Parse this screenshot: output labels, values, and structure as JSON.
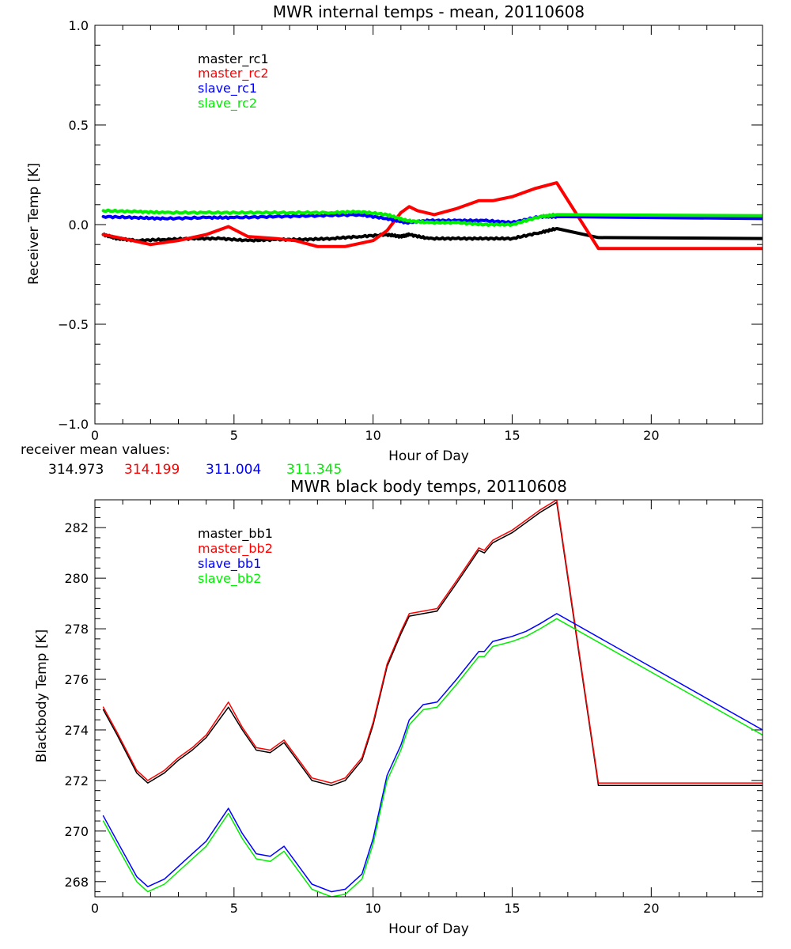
{
  "chart_data": [
    {
      "type": "line",
      "title": "MWR internal temps - mean, 20110608",
      "xlabel": "Hour of Day",
      "ylabel": "Receiver Temp [K]",
      "xlim": [
        0,
        24
      ],
      "ylim": [
        -1.0,
        1.0
      ],
      "xticks": [
        0,
        5,
        10,
        15,
        20
      ],
      "xtick_labels": [
        "0",
        "5",
        "10",
        "15",
        "20"
      ],
      "yticks": [
        -1.0,
        -0.5,
        0.0,
        0.5,
        1.0
      ],
      "ytick_labels": [
        "−1.0",
        "−0.5",
        "0.0",
        "0.5",
        "1.0"
      ],
      "grid": false,
      "legend_position": "top-left",
      "series": [
        {
          "name": "master_rc1",
          "color": "#000000",
          "line_width": 4,
          "noisy": true,
          "x": [
            0.3,
            0.8,
            1.5,
            2.5,
            3.5,
            4.5,
            5.5,
            6.5,
            7.5,
            8.5,
            9.5,
            10.5,
            11.0,
            11.3,
            12.0,
            13.0,
            14.0,
            15.0,
            16.0,
            16.6,
            18.1,
            24.0
          ],
          "y": [
            -0.05,
            -0.07,
            -0.08,
            -0.075,
            -0.07,
            -0.07,
            -0.08,
            -0.075,
            -0.075,
            -0.07,
            -0.06,
            -0.05,
            -0.06,
            -0.05,
            -0.07,
            -0.07,
            -0.07,
            -0.07,
            -0.04,
            -0.02,
            -0.065,
            -0.07
          ]
        },
        {
          "name": "master_rc2",
          "color": "#ff0000",
          "line_width": 4,
          "noisy": false,
          "x": [
            0.3,
            1.0,
            2.0,
            3.0,
            4.0,
            4.8,
            5.5,
            6.5,
            7.2,
            8.0,
            9.0,
            10.0,
            10.5,
            11.0,
            11.3,
            11.6,
            12.2,
            13.0,
            13.8,
            14.3,
            15.0,
            15.8,
            16.6,
            18.1,
            24.0
          ],
          "y": [
            -0.05,
            -0.07,
            -0.1,
            -0.08,
            -0.05,
            -0.01,
            -0.06,
            -0.07,
            -0.08,
            -0.11,
            -0.11,
            -0.08,
            -0.03,
            0.06,
            0.09,
            0.07,
            0.05,
            0.08,
            0.12,
            0.12,
            0.14,
            0.18,
            0.21,
            -0.12,
            -0.12
          ]
        },
        {
          "name": "slave_rc1",
          "color": "#0000ff",
          "line_width": 4,
          "noisy": true,
          "x": [
            0.3,
            1.5,
            2.5,
            4.0,
            5.0,
            6.5,
            8.0,
            9.5,
            10.5,
            11.2,
            12.0,
            13.0,
            14.0,
            15.0,
            16.0,
            16.6,
            24.0
          ],
          "y": [
            0.04,
            0.035,
            0.03,
            0.035,
            0.035,
            0.04,
            0.045,
            0.05,
            0.03,
            0.01,
            0.02,
            0.02,
            0.02,
            0.01,
            0.04,
            0.04,
            0.03
          ]
        },
        {
          "name": "slave_rc2",
          "color": "#00ee00",
          "line_width": 4,
          "noisy": true,
          "x": [
            0.3,
            1.5,
            2.5,
            4.0,
            5.5,
            7.0,
            8.5,
            9.5,
            10.5,
            11.2,
            12.0,
            13.0,
            14.0,
            15.0,
            16.0,
            16.6,
            24.0
          ],
          "y": [
            0.07,
            0.065,
            0.06,
            0.06,
            0.06,
            0.06,
            0.06,
            0.065,
            0.05,
            0.02,
            0.01,
            0.01,
            0.0,
            0.0,
            0.04,
            0.05,
            0.045
          ]
        }
      ],
      "annotation": {
        "label": "receiver mean values:",
        "values": [
          "314.973",
          "314.199",
          "311.004",
          "311.345"
        ],
        "colors": [
          "#000000",
          "#ff0000",
          "#0000ff",
          "#00ee00"
        ]
      }
    },
    {
      "type": "line",
      "title": "MWR black body temps, 20110608",
      "xlabel": "Hour of Day",
      "ylabel": "Blackbody Temp [K]",
      "xlim": [
        0,
        24
      ],
      "ylim": [
        267.4,
        283.1
      ],
      "xticks": [
        0,
        5,
        10,
        15,
        20
      ],
      "xtick_labels": [
        "0",
        "5",
        "10",
        "15",
        "20"
      ],
      "yticks": [
        268,
        270,
        272,
        274,
        276,
        278,
        280,
        282
      ],
      "ytick_labels": [
        "268",
        "270",
        "272",
        "274",
        "276",
        "278",
        "280",
        "282"
      ],
      "grid": false,
      "legend_position": "top-left",
      "series": [
        {
          "name": "master_bb1",
          "color": "#000000",
          "line_width": 1.5,
          "noisy": false,
          "x": [
            0.3,
            0.8,
            1.5,
            1.9,
            2.5,
            3.0,
            3.5,
            4.0,
            4.8,
            5.3,
            5.8,
            6.3,
            6.8,
            7.2,
            7.8,
            8.5,
            9.0,
            9.6,
            10.0,
            10.5,
            11.0,
            11.3,
            11.8,
            12.3,
            13.0,
            13.8,
            14.0,
            14.3,
            15.0,
            15.5,
            16.0,
            16.6,
            18.1,
            24.0
          ],
          "y": [
            274.8,
            273.8,
            272.3,
            271.9,
            272.3,
            272.8,
            273.2,
            273.7,
            274.9,
            274.0,
            273.2,
            273.1,
            273.5,
            272.9,
            272.0,
            271.8,
            272.0,
            272.8,
            274.2,
            276.5,
            277.8,
            278.5,
            278.6,
            278.7,
            279.8,
            281.1,
            281.0,
            281.4,
            281.8,
            282.2,
            282.6,
            283.0,
            271.8,
            271.8
          ]
        },
        {
          "name": "master_bb2",
          "color": "#ff0000",
          "line_width": 1.5,
          "noisy": false,
          "x": [
            0.3,
            0.8,
            1.5,
            1.9,
            2.5,
            3.0,
            3.5,
            4.0,
            4.8,
            5.3,
            5.8,
            6.3,
            6.8,
            7.2,
            7.8,
            8.5,
            9.0,
            9.6,
            10.0,
            10.5,
            11.0,
            11.3,
            11.8,
            12.3,
            13.0,
            13.8,
            14.0,
            14.3,
            15.0,
            15.5,
            16.0,
            16.6,
            18.1,
            24.0
          ],
          "y": [
            274.9,
            273.9,
            272.4,
            272.0,
            272.4,
            272.9,
            273.3,
            273.8,
            275.1,
            274.1,
            273.3,
            273.2,
            273.6,
            273.0,
            272.1,
            271.9,
            272.1,
            272.9,
            274.3,
            276.6,
            277.9,
            278.6,
            278.7,
            278.8,
            279.9,
            281.2,
            281.1,
            281.5,
            281.9,
            282.3,
            282.7,
            283.1,
            271.9,
            271.9
          ]
        },
        {
          "name": "slave_bb1",
          "color": "#0000ff",
          "line_width": 1.5,
          "noisy": false,
          "x": [
            0.3,
            0.8,
            1.5,
            1.9,
            2.5,
            3.0,
            3.5,
            4.0,
            4.8,
            5.3,
            5.8,
            6.3,
            6.8,
            7.2,
            7.8,
            8.5,
            9.0,
            9.6,
            10.0,
            10.5,
            11.0,
            11.3,
            11.8,
            12.3,
            13.0,
            13.8,
            14.0,
            14.3,
            15.0,
            15.5,
            16.0,
            16.6,
            24.0
          ],
          "y": [
            270.6,
            269.6,
            268.2,
            267.8,
            268.1,
            268.6,
            269.1,
            269.6,
            270.9,
            269.9,
            269.1,
            269.0,
            269.4,
            268.8,
            267.9,
            267.6,
            267.7,
            268.3,
            269.7,
            272.2,
            273.4,
            274.4,
            275.0,
            275.1,
            276.0,
            277.1,
            277.1,
            277.5,
            277.7,
            277.9,
            278.2,
            278.6,
            274.0
          ]
        },
        {
          "name": "slave_bb2",
          "color": "#00ee00",
          "line_width": 1.5,
          "noisy": false,
          "x": [
            0.3,
            0.8,
            1.5,
            1.9,
            2.5,
            3.0,
            3.5,
            4.0,
            4.8,
            5.3,
            5.8,
            6.3,
            6.8,
            7.2,
            7.8,
            8.5,
            9.0,
            9.6,
            10.0,
            10.5,
            11.0,
            11.3,
            11.8,
            12.3,
            13.0,
            13.8,
            14.0,
            14.3,
            15.0,
            15.5,
            16.0,
            16.6,
            24.0
          ],
          "y": [
            270.4,
            269.4,
            268.0,
            267.6,
            267.9,
            268.4,
            268.9,
            269.4,
            270.7,
            269.7,
            268.9,
            268.8,
            269.2,
            268.6,
            267.7,
            267.4,
            267.5,
            268.1,
            269.5,
            272.0,
            273.2,
            274.2,
            274.8,
            274.9,
            275.8,
            276.9,
            276.9,
            277.3,
            277.5,
            277.7,
            278.0,
            278.4,
            273.8
          ]
        }
      ]
    }
  ]
}
